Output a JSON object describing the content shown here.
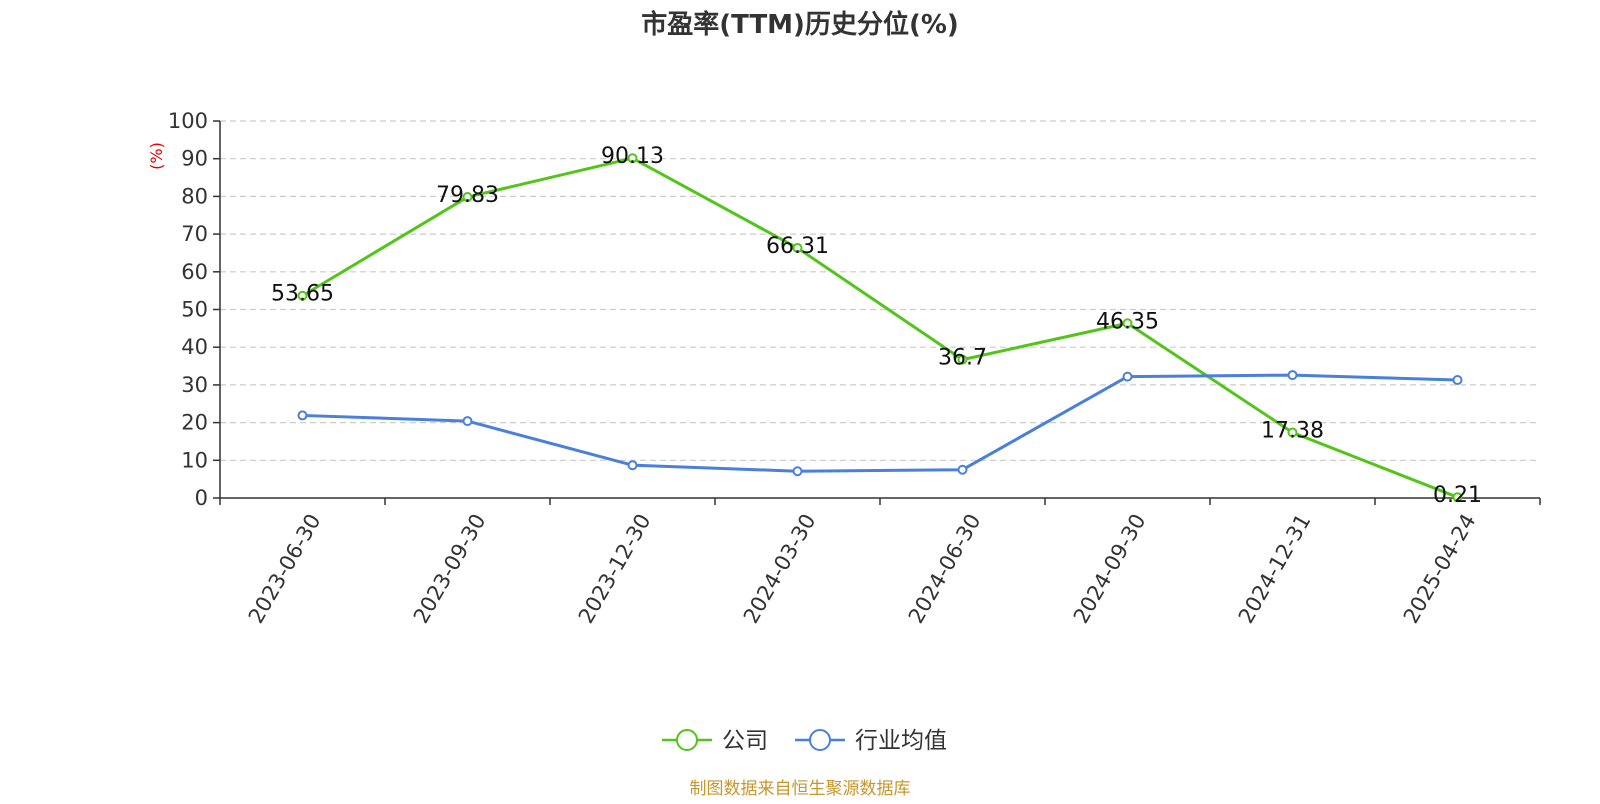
{
  "chart_data": {
    "type": "line",
    "title": "市盈率(TTM)历史分位(%)",
    "ylabel": "(%)",
    "ylim": [
      0,
      100
    ],
    "yticks": [
      0,
      10,
      20,
      30,
      40,
      50,
      60,
      70,
      80,
      90,
      100
    ],
    "categories": [
      "2023-06-30",
      "2023-09-30",
      "2023-12-30",
      "2024-03-30",
      "2024-06-30",
      "2024-09-30",
      "2024-12-31",
      "2025-04-24"
    ],
    "series": [
      {
        "name": "公司",
        "color": "#52c41a",
        "values": [
          53.65,
          79.83,
          90.13,
          66.31,
          36.7,
          46.35,
          17.38,
          0.21
        ],
        "labels": [
          "53.65",
          "79.83",
          "90.13",
          "66.31",
          "36.7",
          "46.35",
          "17.38",
          "0.21"
        ]
      },
      {
        "name": "行业均值",
        "color": "#4a7fdc",
        "values": [
          21.9,
          20.4,
          8.7,
          7.1,
          7.5,
          32.2,
          32.6,
          31.3
        ]
      }
    ],
    "grid": true,
    "legend": "bottom-center"
  },
  "source": "制图数据来自恒生聚源数据库",
  "colors": {
    "axis": "#333333",
    "grid": "#cccccc",
    "ylabel": "#e60000",
    "source": "#c8962a",
    "title": "#333333"
  }
}
